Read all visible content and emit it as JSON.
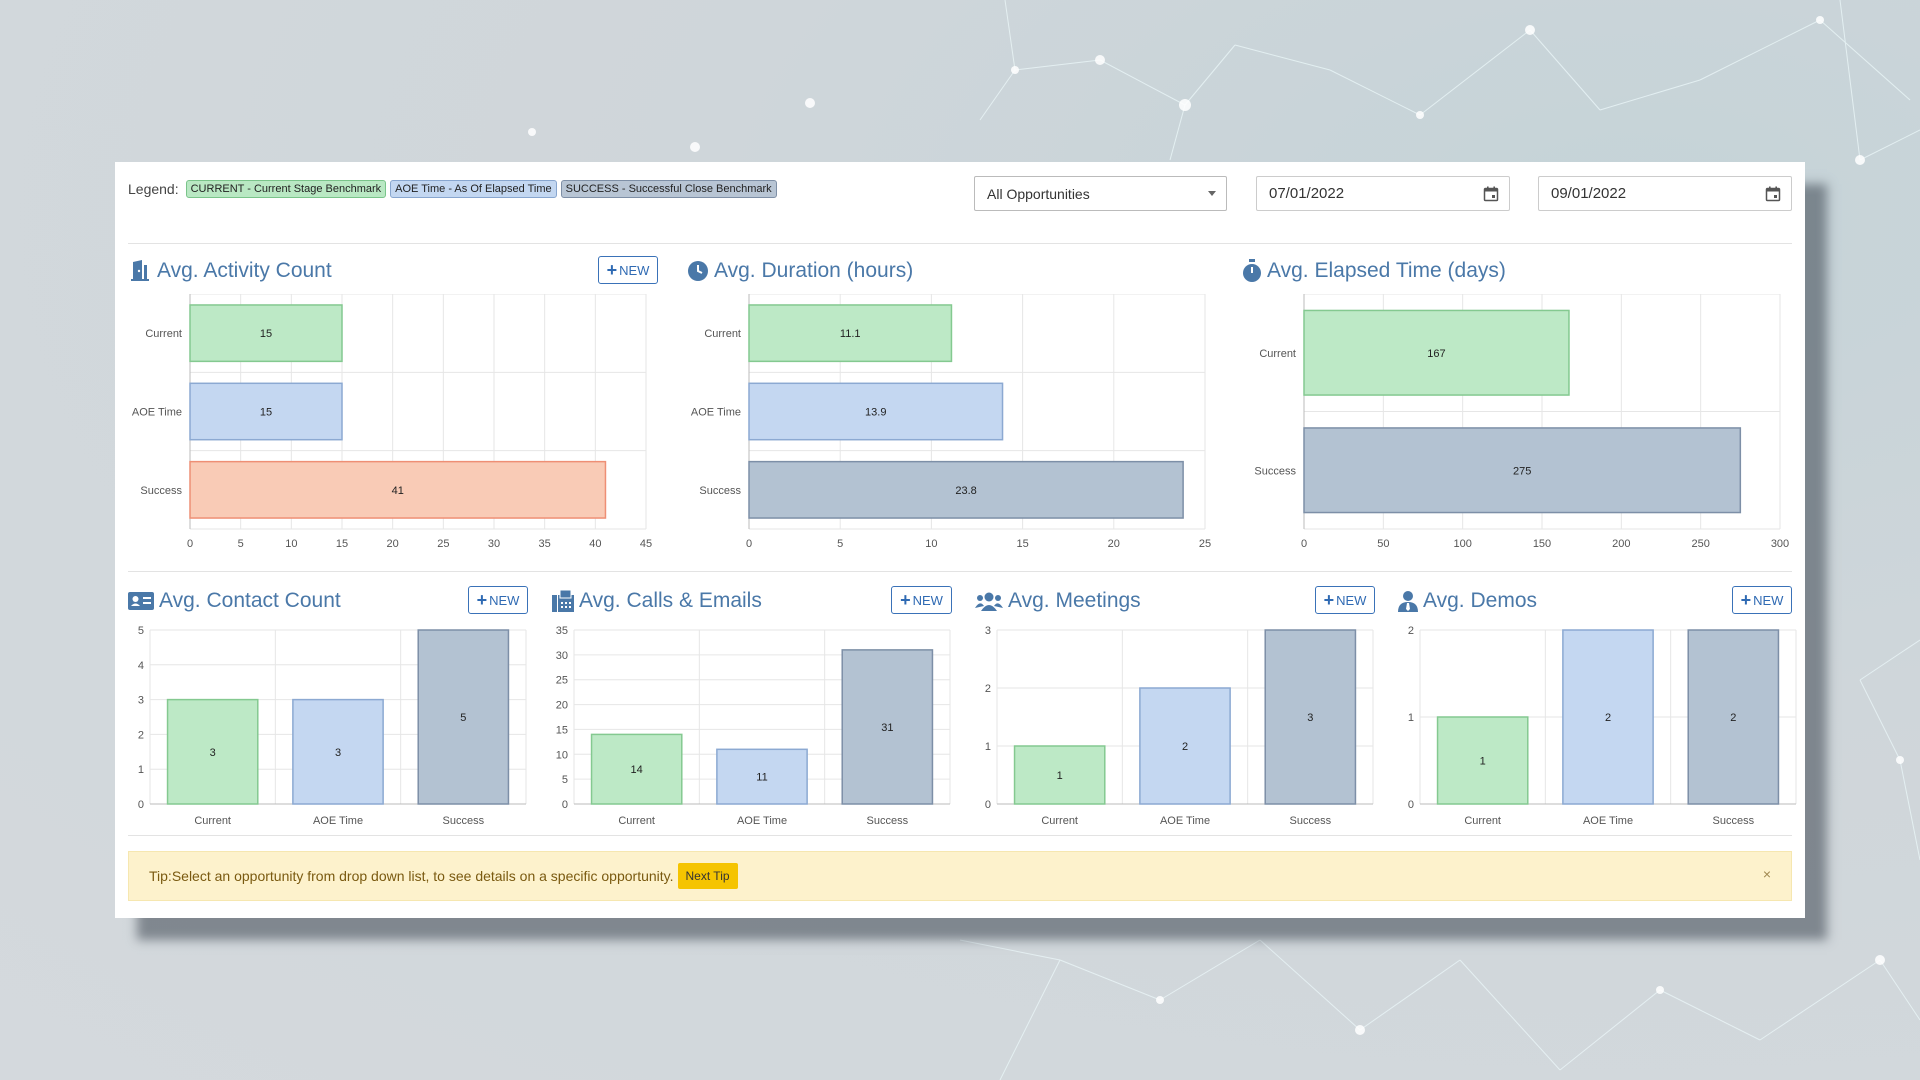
{
  "colors": {
    "current_fill": "#bde9c6",
    "current_stroke": "#84c990",
    "aoe_fill": "#c4d7f1",
    "aoe_stroke": "#8ca9d2",
    "success_fill": "#b3c2d2",
    "success_stroke": "#7d8fa7",
    "success_alt_fill": "#f9cbb6",
    "success_alt_stroke": "#ee8f75",
    "title": "#4a78a8"
  },
  "legend": {
    "label": "Legend:",
    "current": "CURRENT - Current Stage Benchmark",
    "aoe": "AOE Time - As Of Elapsed Time",
    "success": "SUCCESS - Successful Close Benchmark"
  },
  "filters": {
    "opportunity": "All Opportunities",
    "start_date": "07/01/2022",
    "end_date": "09/01/2022"
  },
  "new_label": "NEW",
  "cards": {
    "activity": {
      "title": "Avg. Activity Count",
      "icon": "door-icon"
    },
    "duration": {
      "title": "Avg. Duration (hours)",
      "icon": "clock-icon"
    },
    "elapsed": {
      "title": "Avg. Elapsed Time (days)",
      "icon": "stopwatch-icon"
    },
    "contact": {
      "title": "Avg. Contact Count",
      "icon": "contact-card-icon"
    },
    "calls": {
      "title": "Avg. Calls & Emails",
      "icon": "fax-icon"
    },
    "meetings": {
      "title": "Avg. Meetings",
      "icon": "users-icon"
    },
    "demos": {
      "title": "Avg. Demos",
      "icon": "user-tie-icon"
    }
  },
  "chart_data": [
    {
      "id": "activity",
      "type": "bar",
      "orientation": "horizontal",
      "categories": [
        "Current",
        "AOE Time",
        "Success"
      ],
      "values": [
        15,
        15,
        41
      ],
      "styles": [
        "current",
        "aoe",
        "success_alt"
      ],
      "xlim": [
        0,
        45
      ],
      "ticks": [
        0,
        5,
        10,
        15,
        20,
        25,
        30,
        35,
        40,
        45
      ],
      "grid": true
    },
    {
      "id": "duration",
      "type": "bar",
      "orientation": "horizontal",
      "categories": [
        "Current",
        "AOE Time",
        "Success"
      ],
      "values": [
        11.1,
        13.9,
        23.8
      ],
      "styles": [
        "current",
        "aoe",
        "success"
      ],
      "xlim": [
        0,
        25
      ],
      "ticks": [
        0,
        5,
        10,
        15,
        20,
        25
      ],
      "grid": true
    },
    {
      "id": "elapsed",
      "type": "bar",
      "orientation": "horizontal",
      "categories": [
        "Current",
        "Success"
      ],
      "values": [
        167,
        275
      ],
      "styles": [
        "current",
        "success"
      ],
      "xlim": [
        0,
        300
      ],
      "ticks": [
        0,
        50,
        100,
        150,
        200,
        250,
        300
      ],
      "grid": true
    },
    {
      "id": "contact",
      "type": "bar",
      "orientation": "vertical",
      "categories": [
        "Current",
        "AOE Time",
        "Success"
      ],
      "values": [
        3,
        3,
        5
      ],
      "styles": [
        "current",
        "aoe",
        "success"
      ],
      "ylim": [
        0,
        5
      ],
      "ticks": [
        0,
        1,
        2,
        3,
        4,
        5
      ],
      "grid": true
    },
    {
      "id": "calls",
      "type": "bar",
      "orientation": "vertical",
      "categories": [
        "Current",
        "AOE Time",
        "Success"
      ],
      "values": [
        14,
        11,
        31
      ],
      "styles": [
        "current",
        "aoe",
        "success"
      ],
      "ylim": [
        0,
        35
      ],
      "ticks": [
        0,
        5,
        10,
        15,
        20,
        25,
        30,
        35
      ],
      "grid": true
    },
    {
      "id": "meetings",
      "type": "bar",
      "orientation": "vertical",
      "categories": [
        "Current",
        "AOE Time",
        "Success"
      ],
      "values": [
        1,
        2,
        3
      ],
      "styles": [
        "current",
        "aoe",
        "success"
      ],
      "ylim": [
        0,
        3
      ],
      "ticks": [
        0,
        1,
        2,
        3
      ],
      "grid": true
    },
    {
      "id": "demos",
      "type": "bar",
      "orientation": "vertical",
      "categories": [
        "Current",
        "AOE Time",
        "Success"
      ],
      "values": [
        1,
        2,
        2
      ],
      "styles": [
        "current",
        "aoe",
        "success"
      ],
      "ylim": [
        0,
        2
      ],
      "ticks": [
        0,
        1,
        2
      ],
      "grid": true
    }
  ],
  "tip": {
    "text": "Tip:Select an opportunity from drop down list, to see details on a specific opportunity.",
    "next_label": "Next Tip",
    "close": "×"
  }
}
